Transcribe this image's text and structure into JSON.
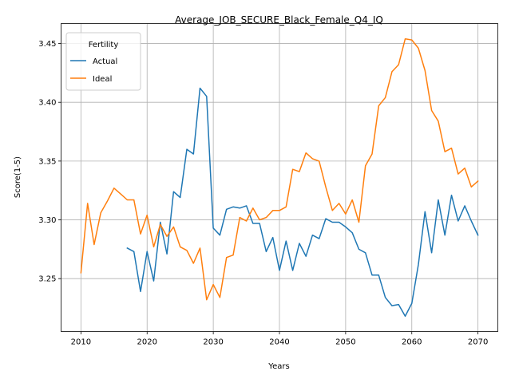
{
  "chart_data": {
    "type": "line",
    "title": "Average_JOB_SECURE_Black_Female_Q4_IQ",
    "xlabel": "Years",
    "ylabel": "Score(1-5)",
    "xlim": [
      2007,
      2073
    ],
    "ylim": [
      3.205,
      3.467
    ],
    "xticks": [
      2010,
      2020,
      2030,
      2040,
      2050,
      2060,
      2070
    ],
    "yticks": [
      3.25,
      3.3,
      3.35,
      3.4,
      3.45
    ],
    "xtick_labels": [
      "2010",
      "2020",
      "2030",
      "2040",
      "2050",
      "2060",
      "2070"
    ],
    "ytick_labels": [
      "3.25",
      "3.30",
      "3.35",
      "3.40",
      "3.45"
    ],
    "grid": true,
    "legend": {
      "title": "Fertility",
      "placement": "top-left"
    },
    "series": [
      {
        "name": "Actual",
        "color": "#1f77b4",
        "x": [
          2017,
          2018,
          2019,
          2020,
          2021,
          2022,
          2023,
          2024,
          2025,
          2026,
          2027,
          2028,
          2029,
          2030,
          2031,
          2032,
          2033,
          2034,
          2035,
          2036,
          2037,
          2038,
          2039,
          2040,
          2041,
          2042,
          2043,
          2044,
          2045,
          2046,
          2047,
          2048,
          2049,
          2050,
          2051,
          2052,
          2053,
          2054,
          2055,
          2056,
          2057,
          2058,
          2059,
          2060,
          2061,
          2062,
          2063,
          2064,
          2065,
          2066,
          2067,
          2068,
          2069,
          2070
        ],
        "values": [
          3.276,
          3.273,
          3.239,
          3.273,
          3.248,
          3.298,
          3.271,
          3.324,
          3.319,
          3.36,
          3.356,
          3.412,
          3.405,
          3.293,
          3.287,
          3.309,
          3.311,
          3.31,
          3.312,
          3.297,
          3.297,
          3.273,
          3.285,
          3.257,
          3.282,
          3.257,
          3.28,
          3.269,
          3.287,
          3.284,
          3.301,
          3.298,
          3.298,
          3.294,
          3.289,
          3.275,
          3.272,
          3.253,
          3.253,
          3.234,
          3.227,
          3.228,
          3.218,
          3.229,
          3.262,
          3.307,
          3.272,
          3.317,
          3.287,
          3.321,
          3.299,
          3.312,
          3.299,
          3.287
        ]
      },
      {
        "name": "Ideal",
        "color": "#ff7f0e",
        "x": [
          2010,
          2011,
          2012,
          2013,
          2014,
          2015,
          2016,
          2017,
          2018,
          2019,
          2020,
          2021,
          2022,
          2023,
          2024,
          2025,
          2026,
          2027,
          2028,
          2029,
          2030,
          2031,
          2032,
          2033,
          2034,
          2035,
          2036,
          2037,
          2038,
          2039,
          2040,
          2041,
          2042,
          2043,
          2044,
          2045,
          2046,
          2047,
          2048,
          2049,
          2050,
          2051,
          2052,
          2053,
          2054,
          2055,
          2056,
          2057,
          2058,
          2059,
          2060,
          2061,
          2062,
          2063,
          2064,
          2065,
          2066,
          2067,
          2068,
          2069,
          2070
        ],
        "values": [
          3.255,
          3.314,
          3.279,
          3.306,
          3.316,
          3.327,
          3.322,
          3.317,
          3.317,
          3.288,
          3.304,
          3.277,
          3.296,
          3.286,
          3.294,
          3.277,
          3.274,
          3.263,
          3.276,
          3.232,
          3.245,
          3.234,
          3.268,
          3.27,
          3.302,
          3.299,
          3.31,
          3.3,
          3.302,
          3.308,
          3.308,
          3.311,
          3.343,
          3.341,
          3.357,
          3.352,
          3.35,
          3.328,
          3.308,
          3.314,
          3.305,
          3.317,
          3.298,
          3.346,
          3.356,
          3.397,
          3.404,
          3.426,
          3.432,
          3.454,
          3.453,
          3.446,
          3.427,
          3.393,
          3.384,
          3.358,
          3.361,
          3.339,
          3.344,
          3.328,
          3.333
        ]
      }
    ]
  }
}
